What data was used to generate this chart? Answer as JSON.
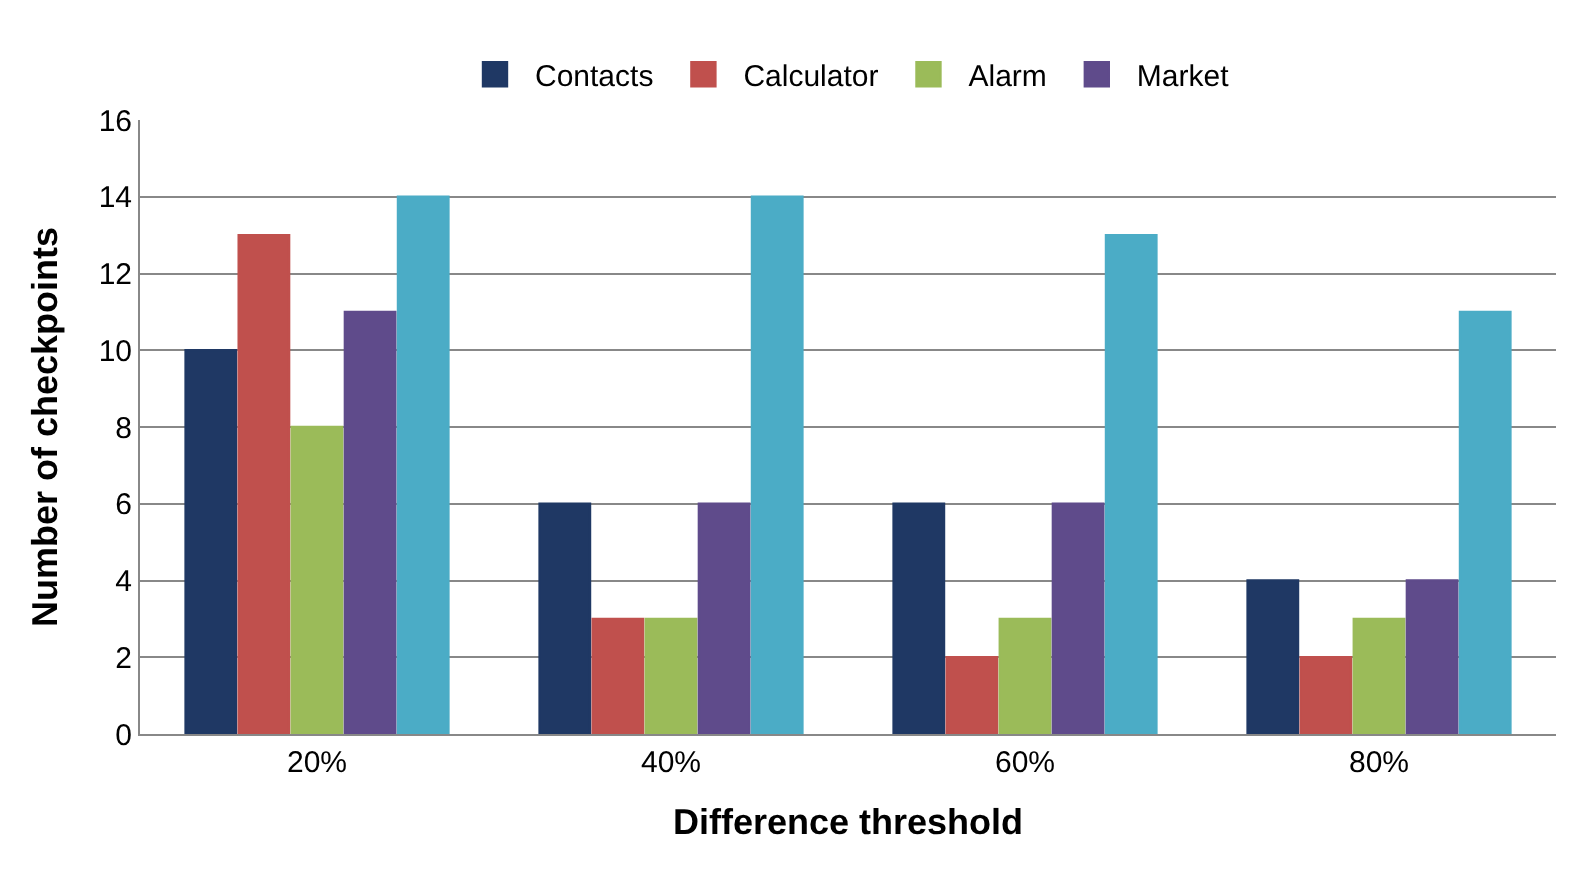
{
  "chart_data": {
    "type": "bar",
    "xlabel": "Difference threshold",
    "ylabel": "Number of checkpoints",
    "categories": [
      "20%",
      "40%",
      "60%",
      "80%"
    ],
    "series": [
      {
        "name": "Contacts",
        "color": "#1f3864",
        "values": [
          10,
          6,
          6,
          4
        ]
      },
      {
        "name": "Calculator",
        "color": "#c0504d",
        "values": [
          13,
          3,
          2,
          2
        ]
      },
      {
        "name": "Alarm",
        "color": "#9bbb59",
        "values": [
          8,
          3,
          3,
          3
        ]
      },
      {
        "name": "Market",
        "color": "#5f4b8b",
        "values": [
          11,
          6,
          6,
          4
        ]
      },
      {
        "color": "#4bacc6",
        "values": [
          14,
          14,
          13,
          11
        ]
      }
    ],
    "ylim": [
      0,
      16
    ],
    "yticks": [
      0,
      2,
      4,
      6,
      8,
      10,
      12,
      14,
      16
    ],
    "grid": "y",
    "legend": "top"
  }
}
